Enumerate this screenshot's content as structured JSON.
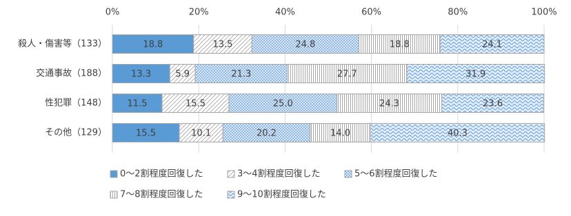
{
  "chart_data": {
    "type": "stacked-bar-horizontal",
    "categories": [
      "殺人・傷害等（133）",
      "交通事故（188）",
      "性犯罪（148）",
      "その他（129）"
    ],
    "series": [
      {
        "name": "0～2割程度回復した",
        "color": "#5b9bd5",
        "pattern": "solid",
        "values": [
          18.8,
          13.3,
          11.5,
          15.5
        ],
        "value_labels": [
          "18.8",
          "13.3",
          "11.5",
          "15.5"
        ]
      },
      {
        "name": "3～4割程度回復した",
        "color": "#a5a5a5",
        "pattern": "diagonal",
        "values": [
          13.5,
          5.9,
          15.5,
          10.1
        ],
        "value_labels": [
          "13.5",
          "5.9",
          "15.5",
          "10.1"
        ]
      },
      {
        "name": "5～6割程度回復した",
        "color": "#5b9bd5",
        "pattern": "dots",
        "values": [
          24.8,
          21.3,
          25.0,
          20.2
        ],
        "value_labels": [
          "24.8",
          "21.3",
          "25.0",
          "20.2"
        ]
      },
      {
        "name": "7～8割程度回復した",
        "color": "#a5a5a5",
        "pattern": "vertical",
        "values": [
          18.8,
          27.7,
          24.3,
          14.0
        ],
        "value_labels": [
          "18.8",
          "27.7",
          "24.3",
          "14.0"
        ]
      },
      {
        "name": "9～10割程度回復した",
        "color": "#5b9bd5",
        "pattern": "wave",
        "values": [
          24.1,
          31.9,
          23.6,
          40.3
        ],
        "value_labels": [
          "24.1",
          "31.9",
          "23.6",
          "40.3"
        ]
      }
    ],
    "xlim": [
      0,
      100
    ],
    "xticks": [
      {
        "value": 0,
        "label": "0%"
      },
      {
        "value": 20,
        "label": "20%"
      },
      {
        "value": 40,
        "label": "40%"
      },
      {
        "value": 60,
        "label": "60%"
      },
      {
        "value": 80,
        "label": "80%"
      },
      {
        "value": 100,
        "label": "100%"
      }
    ],
    "grid": true
  }
}
